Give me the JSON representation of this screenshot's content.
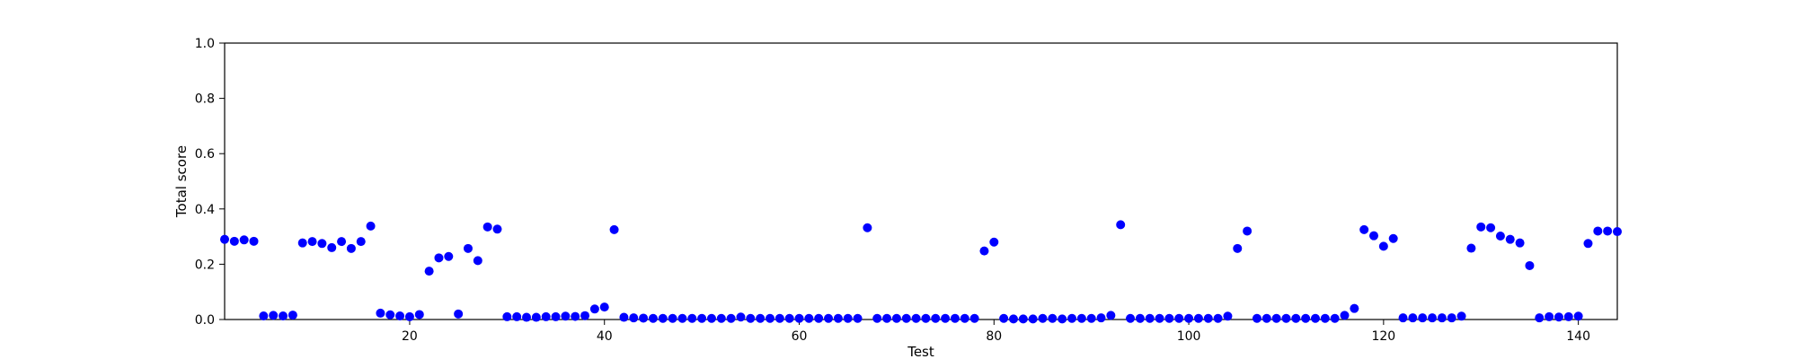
{
  "chart_data": {
    "type": "scatter",
    "title": "",
    "xlabel": "Test",
    "ylabel": "Total score",
    "xlim": [
      1,
      144
    ],
    "ylim": [
      0.0,
      1.0
    ],
    "grid": false,
    "legend": "none",
    "x_ticks": [
      20,
      40,
      60,
      80,
      100,
      120,
      140
    ],
    "y_ticks": [
      0.0,
      0.2,
      0.4,
      0.6,
      0.8,
      1.0
    ],
    "y_tick_labels": [
      "0.0",
      "0.2",
      "0.4",
      "0.6",
      "0.8",
      "1.0"
    ],
    "marker_color": "#0000ff",
    "series": [
      {
        "x": [
          1,
          2,
          3,
          4,
          5,
          6,
          7,
          8,
          9,
          10,
          11,
          12,
          13,
          14,
          15,
          16,
          17,
          18,
          19,
          20,
          21,
          22,
          23,
          24,
          25,
          26,
          27,
          28,
          29,
          30,
          31,
          32,
          33,
          34,
          35,
          36,
          37,
          38,
          39,
          40,
          41,
          42,
          43,
          44,
          45,
          46,
          47,
          48,
          49,
          50,
          51,
          52,
          53,
          54,
          55,
          56,
          57,
          58,
          59,
          60,
          61,
          62,
          63,
          64,
          65,
          66,
          67,
          68,
          69,
          70,
          71,
          72,
          73,
          74,
          75,
          76,
          77,
          78,
          79,
          80,
          81,
          82,
          83,
          84,
          85,
          86,
          87,
          88,
          89,
          90,
          91,
          92,
          93,
          94,
          95,
          96,
          97,
          98,
          99,
          100,
          101,
          102,
          103,
          104,
          105,
          106,
          107,
          108,
          109,
          110,
          111,
          112,
          113,
          114,
          115,
          116,
          117,
          118,
          119,
          120,
          121,
          122,
          123,
          124,
          125,
          126,
          127,
          128,
          129,
          130,
          131,
          132,
          133,
          134,
          135,
          136,
          137,
          138,
          139,
          140,
          141,
          142,
          143,
          144
        ],
        "y": [
          0.29,
          0.283,
          0.288,
          0.283,
          0.013,
          0.015,
          0.013,
          0.016,
          0.277,
          0.282,
          0.275,
          0.26,
          0.282,
          0.257,
          0.282,
          0.338,
          0.023,
          0.017,
          0.013,
          0.01,
          0.018,
          0.175,
          0.223,
          0.228,
          0.02,
          0.257,
          0.213,
          0.335,
          0.327,
          0.01,
          0.01,
          0.008,
          0.008,
          0.01,
          0.01,
          0.012,
          0.011,
          0.014,
          0.038,
          0.045,
          0.325,
          0.008,
          0.006,
          0.005,
          0.004,
          0.004,
          0.004,
          0.004,
          0.004,
          0.004,
          0.004,
          0.004,
          0.004,
          0.009,
          0.004,
          0.004,
          0.004,
          0.004,
          0.004,
          0.004,
          0.004,
          0.004,
          0.004,
          0.004,
          0.004,
          0.004,
          0.332,
          0.004,
          0.004,
          0.004,
          0.004,
          0.004,
          0.004,
          0.004,
          0.004,
          0.004,
          0.004,
          0.004,
          0.248,
          0.28,
          0.004,
          0.002,
          0.002,
          0.002,
          0.004,
          0.004,
          0.002,
          0.004,
          0.004,
          0.004,
          0.006,
          0.015,
          0.343,
          0.004,
          0.004,
          0.004,
          0.004,
          0.004,
          0.004,
          0.004,
          0.004,
          0.004,
          0.004,
          0.012,
          0.257,
          0.32,
          0.004,
          0.004,
          0.004,
          0.004,
          0.004,
          0.004,
          0.004,
          0.004,
          0.004,
          0.015,
          0.04,
          0.325,
          0.303,
          0.265,
          0.293,
          0.006,
          0.006,
          0.006,
          0.006,
          0.006,
          0.006,
          0.012,
          0.258,
          0.335,
          0.332,
          0.302,
          0.29,
          0.277,
          0.195,
          0.006,
          0.01,
          0.009,
          0.01,
          0.012,
          0.275,
          0.32,
          0.32,
          0.318
        ]
      }
    ]
  }
}
